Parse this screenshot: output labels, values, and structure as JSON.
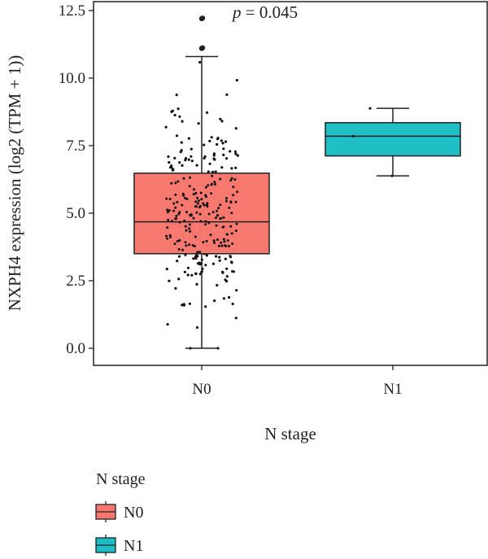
{
  "chart_data": {
    "type": "box",
    "xlabel": "N stage",
    "ylabel": "NXPH4 expression (log2 (TPM + 1))",
    "categories": [
      "N0",
      "N1"
    ],
    "ylim": [
      -0.5,
      12.75
    ],
    "yticks": [
      "0.0",
      "2.5",
      "5.0",
      "7.5",
      "10.0",
      "12.5"
    ],
    "annotation": {
      "p_italic": "p",
      "p_rest": " = 0.045"
    },
    "legend": {
      "title": "N stage",
      "entries": [
        "N0",
        "N1"
      ],
      "placement": "bottom-left"
    },
    "colors": {
      "N0": "#F8766D",
      "N1": "#1CBDC4"
    },
    "series": [
      {
        "name": "N0",
        "min": 0.0,
        "q1": 3.5,
        "median": 4.68,
        "q3": 6.48,
        "max": 10.8,
        "outliers": [
          12.2,
          12.22,
          11.1,
          11.12
        ]
      },
      {
        "name": "N1",
        "min": 6.38,
        "q1": 7.12,
        "median": 7.85,
        "q3": 8.35,
        "max": 8.88,
        "points": [
          8.88,
          7.85,
          6.38
        ]
      }
    ]
  }
}
